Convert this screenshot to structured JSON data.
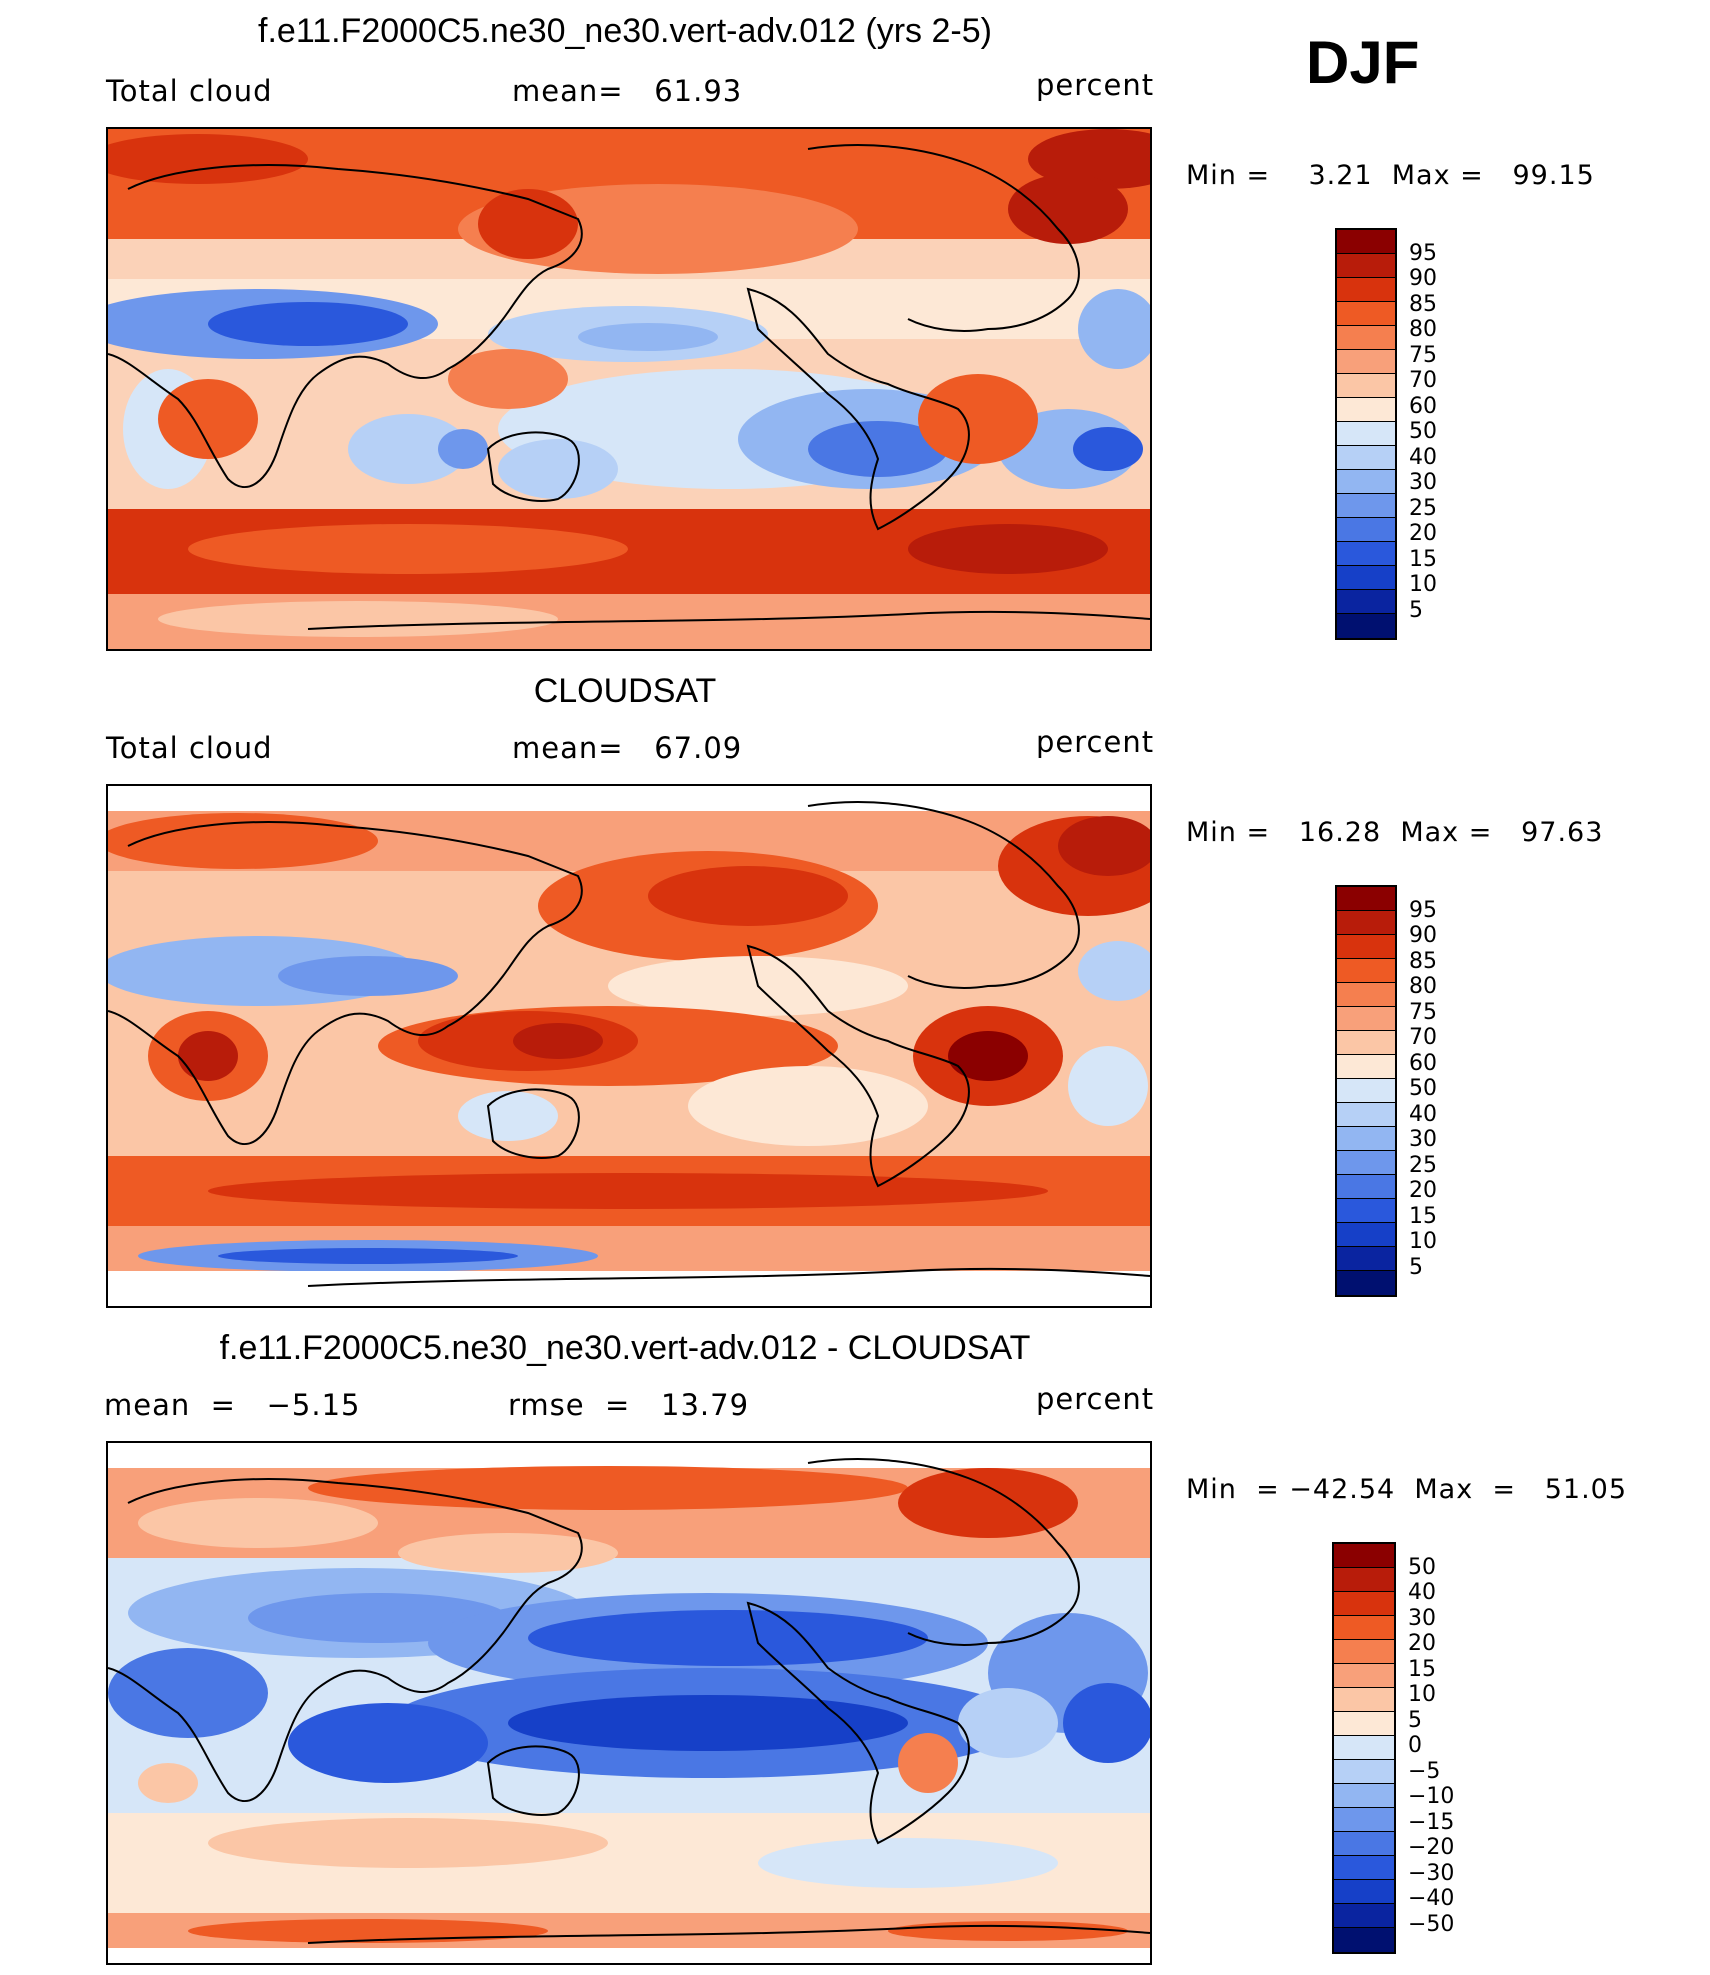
{
  "season": "DJF",
  "panels": [
    {
      "id": "model",
      "title": "f.e11.F2000C5.ne30_ne30.vert-adv.012 (yrs 2-5)",
      "left_label": "Total cloud",
      "center_label": "mean=   61.93",
      "right_label": "percent",
      "minmax": "Min =    3.21  Max =   99.15",
      "colorbar": {
        "colors": [
          "#8b0000",
          "#b81c0a",
          "#d8330d",
          "#ee5a24",
          "#f57f4f",
          "#f8a07a",
          "#fbc6a6",
          "#fde8d6",
          "#d6e6f8",
          "#b6d0f6",
          "#92b6f2",
          "#6e97ec",
          "#4a77e4",
          "#2a58dc",
          "#1640c8",
          "#0a24a0",
          "#001070"
        ],
        "labels": [
          "95",
          "90",
          "85",
          "80",
          "75",
          "70",
          "60",
          "50",
          "40",
          "30",
          "25",
          "20",
          "15",
          "10",
          "5"
        ]
      }
    },
    {
      "id": "obs",
      "title": "CLOUDSAT",
      "left_label": "Total cloud",
      "center_label": "mean=   67.09",
      "right_label": "percent",
      "minmax": "Min =   16.28  Max =   97.63",
      "colorbar": {
        "colors": [
          "#8b0000",
          "#b81c0a",
          "#d8330d",
          "#ee5a24",
          "#f57f4f",
          "#f8a07a",
          "#fbc6a6",
          "#fde8d6",
          "#d6e6f8",
          "#b6d0f6",
          "#92b6f2",
          "#6e97ec",
          "#4a77e4",
          "#2a58dc",
          "#1640c8",
          "#0a24a0",
          "#001070"
        ],
        "labels": [
          "95",
          "90",
          "85",
          "80",
          "75",
          "70",
          "60",
          "50",
          "40",
          "30",
          "25",
          "20",
          "15",
          "10",
          "5"
        ]
      }
    },
    {
      "id": "diff",
      "title": "f.e11.F2000C5.ne30_ne30.vert-adv.012 - CLOUDSAT",
      "left_label": "mean  =   −5.15",
      "center_label": "rmse  =   13.79",
      "right_label": "percent",
      "minmax": "Min  = −42.54  Max  =   51.05",
      "colorbar": {
        "colors": [
          "#8b0000",
          "#b81c0a",
          "#d8330d",
          "#ee5a24",
          "#f57f4f",
          "#f8a07a",
          "#fbc6a6",
          "#fde8d6",
          "#d6e6f8",
          "#b6d0f6",
          "#92b6f2",
          "#6e97ec",
          "#4a77e4",
          "#2a58dc",
          "#1640c8",
          "#0a24a0",
          "#001070"
        ],
        "labels": [
          "50",
          "40",
          "30",
          "20",
          "15",
          "10",
          "5",
          "0",
          "−5",
          "−10",
          "−15",
          "−20",
          "−30",
          "−40",
          "−50"
        ]
      }
    }
  ]
}
